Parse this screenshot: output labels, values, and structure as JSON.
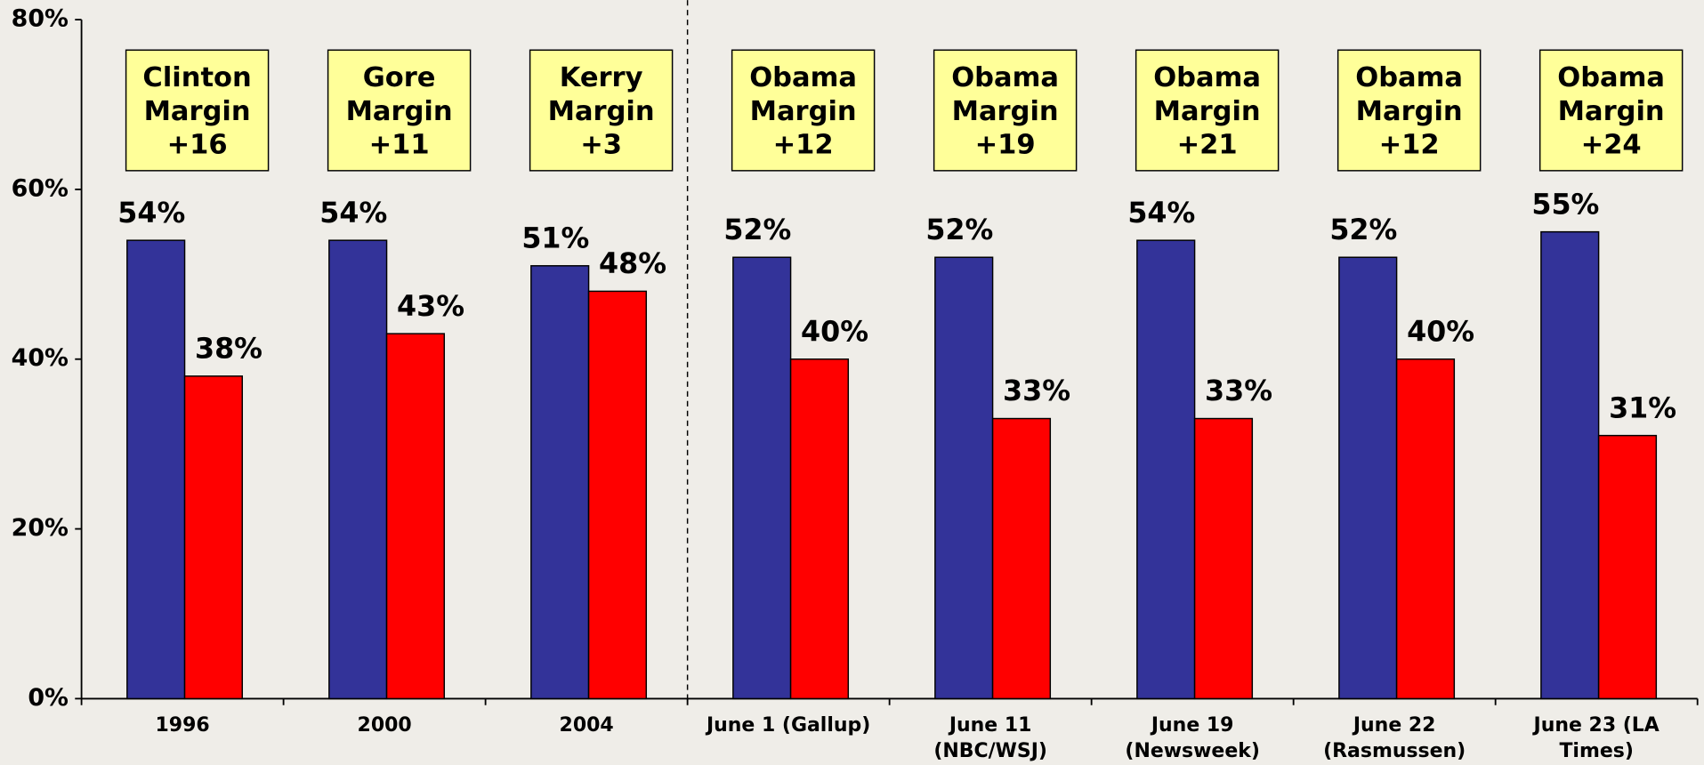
{
  "chart_data": {
    "type": "bar",
    "categories": [
      "1996",
      "2000",
      "2004",
      "June 1 (Gallup)",
      "June 11\n(NBC/WSJ)",
      "June 19\n(Newsweek)",
      "June 22\n(Rasmussen)",
      "June 23 (LA\nTimes)"
    ],
    "series": [
      {
        "color": "#333399",
        "values": [
          54,
          54,
          51,
          52,
          52,
          54,
          52,
          55
        ],
        "value_labels": [
          "54%",
          "54%",
          "51%",
          "52%",
          "52%",
          "54%",
          "52%",
          "55%"
        ]
      },
      {
        "color": "#ff0000",
        "values": [
          38,
          43,
          48,
          40,
          33,
          33,
          40,
          31
        ],
        "value_labels": [
          "38%",
          "43%",
          "48%",
          "40%",
          "33%",
          "33%",
          "40%",
          "31%"
        ]
      }
    ],
    "annotations": [
      "Clinton\nMargin\n+16",
      "Gore\nMargin\n+11",
      "Kerry\nMargin\n+3",
      "Obama\nMargin\n+12",
      "Obama\nMargin\n+19",
      "Obama\nMargin\n+21",
      "Obama\nMargin\n+12",
      "Obama\nMargin\n+24"
    ],
    "annotation_color": "#ffff99",
    "ylim": [
      0,
      80
    ],
    "yticks": [
      {
        "value": 0,
        "label": "0%"
      },
      {
        "value": 20,
        "label": "20%"
      },
      {
        "value": 40,
        "label": "40%"
      },
      {
        "value": 60,
        "label": "60%"
      },
      {
        "value": 80,
        "label": "80%"
      }
    ],
    "grid": false
  }
}
